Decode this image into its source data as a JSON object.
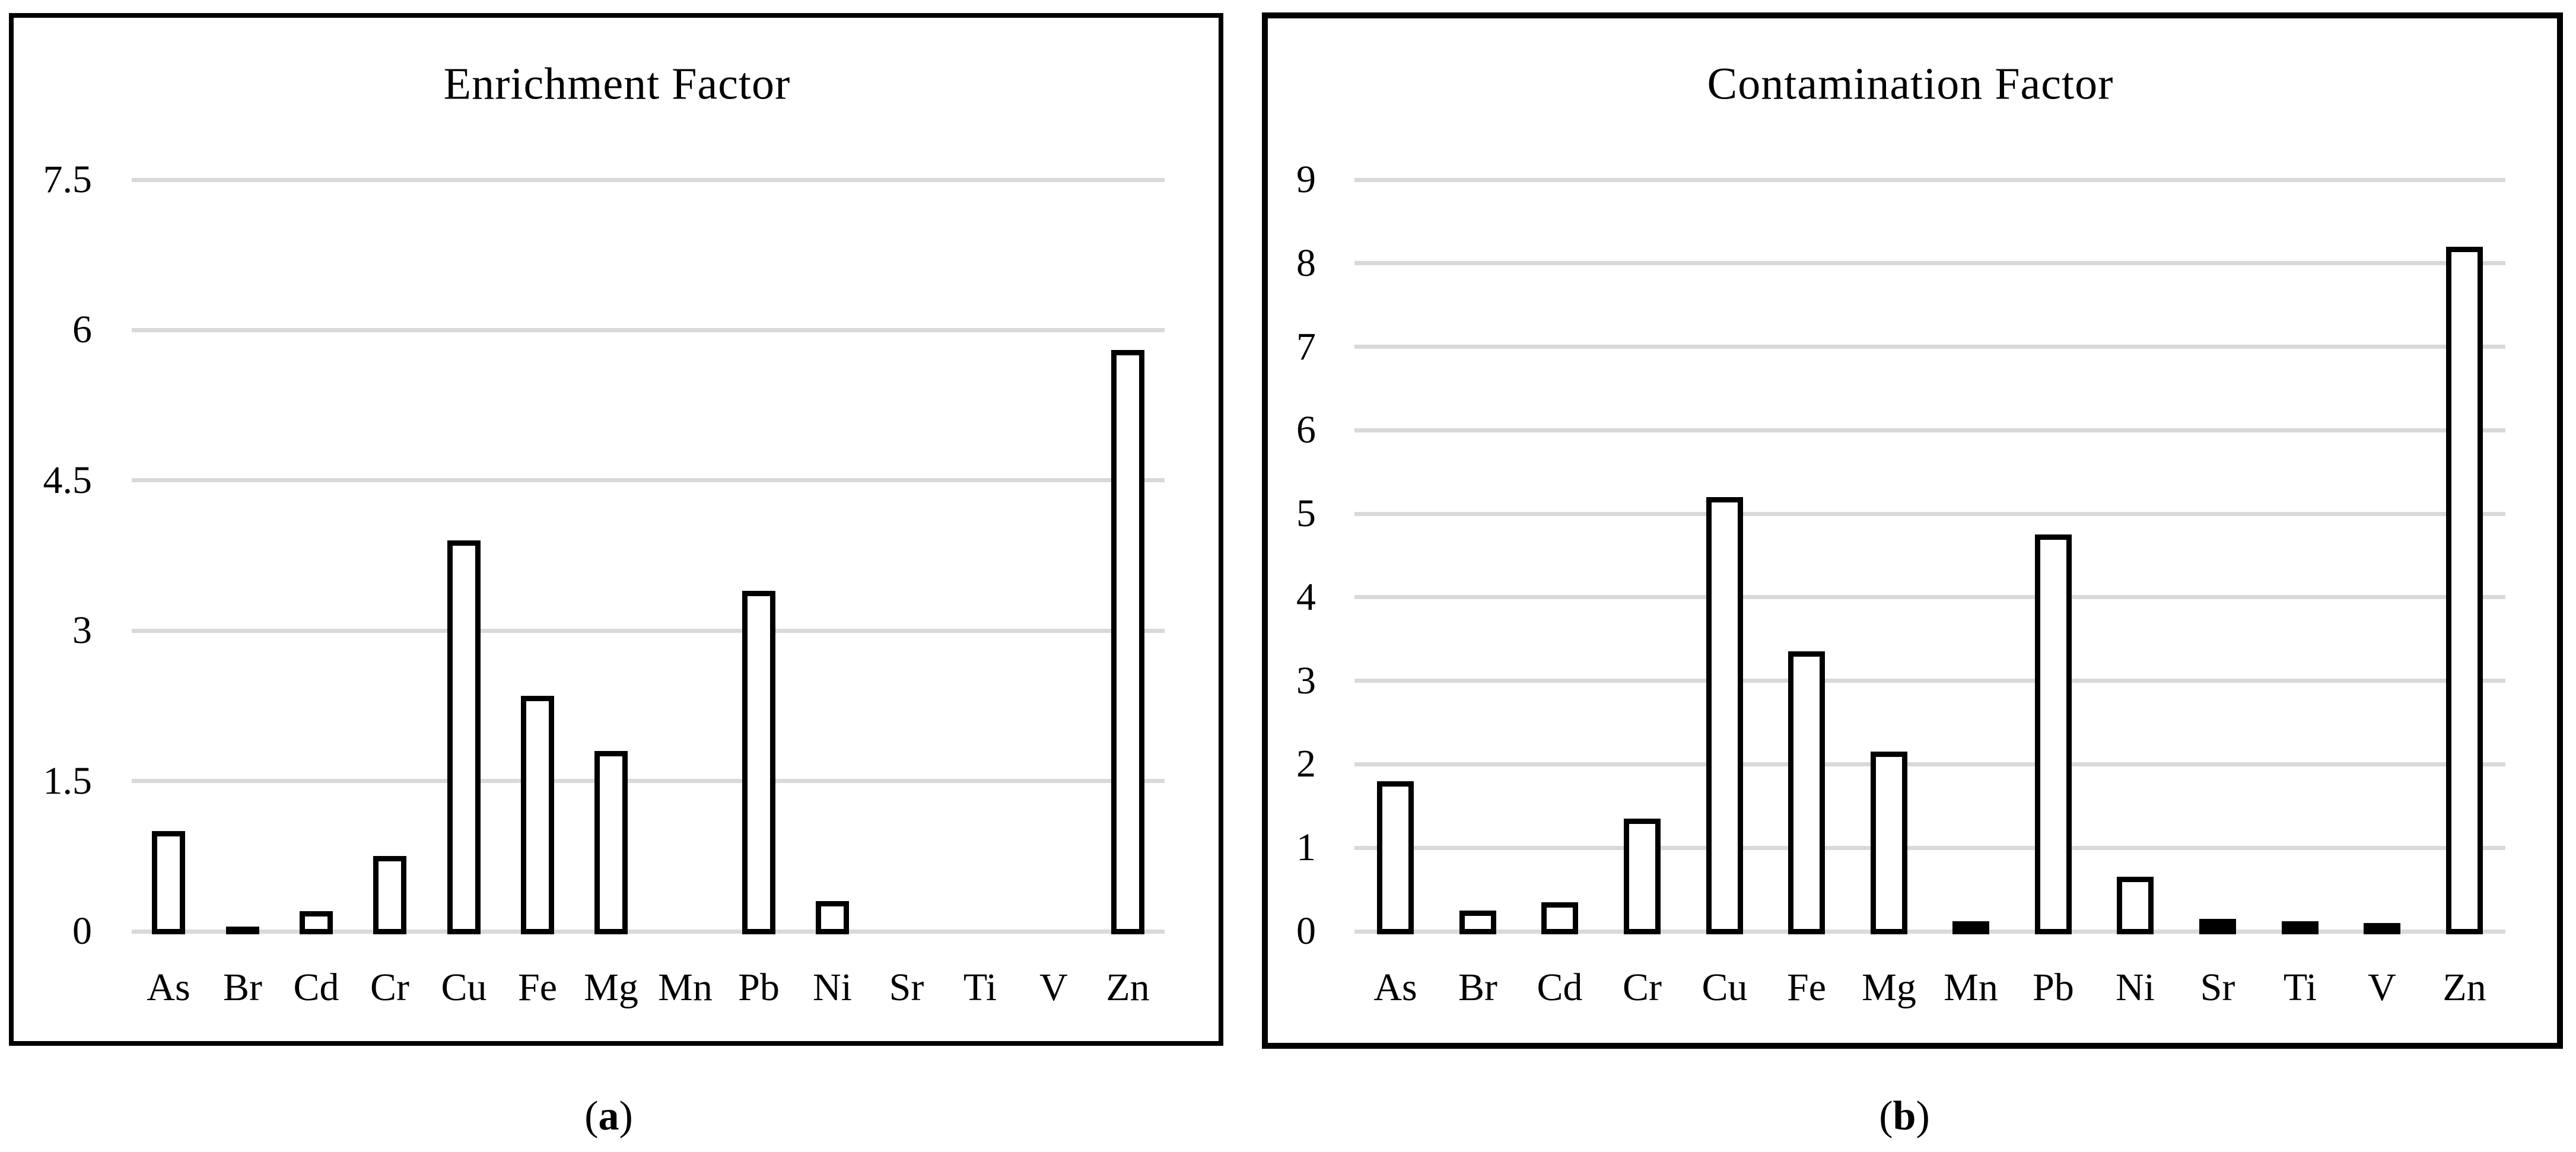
{
  "figure": {
    "captions": [
      {
        "open": "(",
        "letter": "a",
        "close": ")"
      },
      {
        "open": "(",
        "letter": "b",
        "close": ")"
      }
    ]
  },
  "colors": {
    "background": "#ffffff",
    "panel_border": "#000000",
    "gridline": "#d9d9d9",
    "bar_fill": "#ffffff",
    "bar_border": "#000000",
    "text": "#000000"
  },
  "chart_data": [
    {
      "type": "bar",
      "title": "Enrichment Factor",
      "categories": [
        "As",
        "Br",
        "Cd",
        "Cr",
        "Cu",
        "Fe",
        "Mg",
        "Mn",
        "Pb",
        "Ni",
        "Sr",
        "Ti",
        "V",
        "Zn"
      ],
      "values": [
        1.0,
        0.05,
        0.2,
        0.75,
        3.9,
        2.35,
        1.8,
        0,
        3.4,
        0.3,
        0,
        0,
        0,
        5.8
      ],
      "xlabel": "",
      "ylabel": "",
      "ylim": [
        0,
        7.5
      ],
      "yticks": [
        0,
        1.5,
        3,
        4.5,
        6,
        7.5
      ],
      "ytick_labels": [
        "0",
        "1.5",
        "3",
        "4.5",
        "6",
        "7.5"
      ],
      "grid": true,
      "legend": false,
      "bar_style": "white fill with black outline"
    },
    {
      "type": "bar",
      "title": "Contamination Factor",
      "categories": [
        "As",
        "Br",
        "Cd",
        "Cr",
        "Cu",
        "Fe",
        "Mg",
        "Mn",
        "Pb",
        "Ni",
        "Sr",
        "Ti",
        "V",
        "Zn"
      ],
      "values": [
        1.8,
        0.25,
        0.35,
        1.35,
        5.2,
        3.35,
        2.15,
        0.12,
        4.75,
        0.65,
        0.15,
        0.12,
        0.1,
        8.2
      ],
      "xlabel": "",
      "ylabel": "",
      "ylim": [
        0,
        9
      ],
      "yticks": [
        0,
        1,
        2,
        3,
        4,
        5,
        6,
        7,
        8,
        9
      ],
      "ytick_labels": [
        "0",
        "1",
        "2",
        "3",
        "4",
        "5",
        "6",
        "7",
        "8",
        "9"
      ],
      "grid": true,
      "legend": false,
      "bar_style": "white fill with black outline"
    }
  ]
}
